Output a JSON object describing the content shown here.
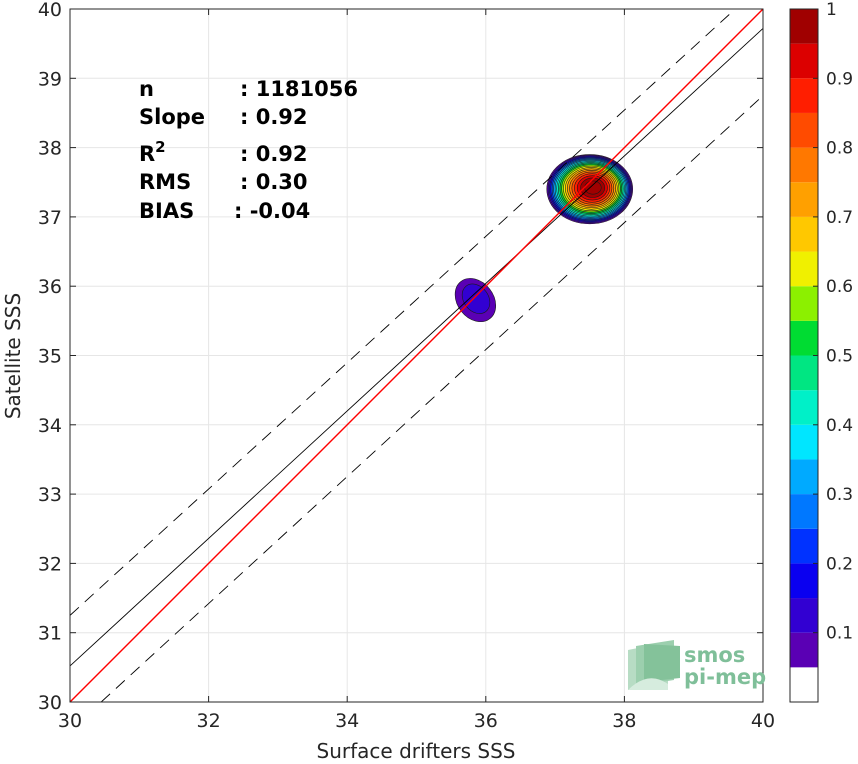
{
  "chart_data": {
    "type": "heatmap",
    "subtype": "density-contour-scatter",
    "xlabel": "Surface drifters SSS",
    "ylabel": "Satellite SSS",
    "xlim": [
      30,
      40
    ],
    "ylim": [
      30,
      40
    ],
    "x_ticks": [
      "30",
      "32",
      "34",
      "36",
      "38",
      "40"
    ],
    "y_ticks": [
      "30",
      "31",
      "32",
      "33",
      "34",
      "35",
      "36",
      "37",
      "38",
      "39",
      "40"
    ],
    "grid": true,
    "stats": {
      "n_label": "n",
      "n_value": ": 1181056",
      "slope_label": "Slope",
      "slope_value": ": 0.92",
      "r2_label": "R",
      "r2_sup": "2",
      "r2_value": ": 0.92",
      "rms_label": "RMS",
      "rms_value": ": 0.30",
      "bias_label": "BIAS",
      "bias_value": ": -0.04"
    },
    "lines": {
      "identity": {
        "slope": 1,
        "intercept": 0,
        "color": "#ff0000"
      },
      "fit": {
        "x": [
          30,
          40
        ],
        "y": [
          30.52,
          39.72
        ],
        "color": "#000000"
      },
      "upper_bound": {
        "x": [
          30,
          39.6
        ],
        "y": [
          31.25,
          40
        ],
        "color": "#000000",
        "style": "dashed"
      },
      "lower_bound": {
        "x": [
          30.45,
          40
        ],
        "y": [
          30,
          38.75
        ],
        "color": "#000000",
        "style": "dashed"
      }
    },
    "clusters": [
      {
        "center": [
          37.5,
          37.4
        ],
        "extent": [
          0.62,
          0.5
        ],
        "max_level": 1.0
      },
      {
        "center": [
          35.85,
          35.8
        ],
        "extent": [
          0.26,
          0.34
        ],
        "max_level": 0.1
      }
    ],
    "colorbar": {
      "range": [
        0,
        1
      ],
      "tick_labels": [
        "0.1",
        "0.2",
        "0.3",
        "0.4",
        "0.5",
        "0.6",
        "0.7",
        "0.8",
        "0.9",
        "1"
      ],
      "tick_values": [
        0.1,
        0.2,
        0.3,
        0.4,
        0.5,
        0.6,
        0.7,
        0.8,
        0.9,
        1.0
      ],
      "levels": [
        0,
        0.05,
        0.1,
        0.15,
        0.2,
        0.25,
        0.3,
        0.35,
        0.4,
        0.45,
        0.5,
        0.55,
        0.6,
        0.65,
        0.7,
        0.75,
        0.8,
        0.85,
        0.9,
        0.95,
        1.0
      ],
      "colors": [
        "#ffffff",
        "#5a00b4",
        "#3200d2",
        "#0a00f0",
        "#0032ff",
        "#0078ff",
        "#00aaff",
        "#00e6ff",
        "#00f0c8",
        "#00e682",
        "#00dc32",
        "#8cf000",
        "#f0f000",
        "#ffc800",
        "#ffa000",
        "#ff7800",
        "#ff4b00",
        "#ff1e00",
        "#dc0000",
        "#a00000"
      ]
    }
  },
  "logo": {
    "line1": "smos",
    "line2": "pi-mep"
  }
}
